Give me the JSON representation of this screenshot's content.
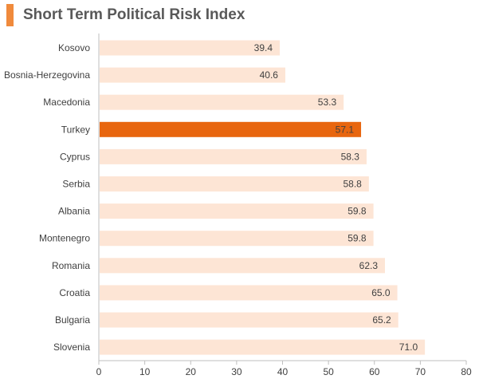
{
  "chart_data": {
    "type": "bar",
    "orientation": "horizontal",
    "title": "Short Term Political Risk Index",
    "categories": [
      "Kosovo",
      "Bosnia-Herzegovina",
      "Macedonia",
      "Turkey",
      "Cyprus",
      "Serbia",
      "Albania",
      "Montenegro",
      "Romania",
      "Croatia",
      "Bulgaria",
      "Slovenia"
    ],
    "values": [
      39.4,
      40.6,
      53.3,
      57.1,
      58.3,
      58.8,
      59.8,
      59.8,
      62.3,
      65.0,
      65.2,
      71.0
    ],
    "value_labels": [
      "39.4",
      "40.6",
      "53.3",
      "57.1",
      "58.3",
      "58.8",
      "59.8",
      "59.8",
      "62.3",
      "65.0",
      "65.2",
      "71.0"
    ],
    "highlight": "Turkey",
    "xlim": [
      0,
      80
    ],
    "xticks": [
      0,
      10,
      20,
      30,
      40,
      50,
      60,
      70,
      80
    ],
    "xlabel": "",
    "ylabel": "",
    "grid": false
  },
  "colors": {
    "accent": "#f08a3c",
    "bar": "#fde5d5",
    "highlight_bar": "#e8660f",
    "highlight_text": "#ffffff",
    "axis": "#bfbfbf"
  }
}
